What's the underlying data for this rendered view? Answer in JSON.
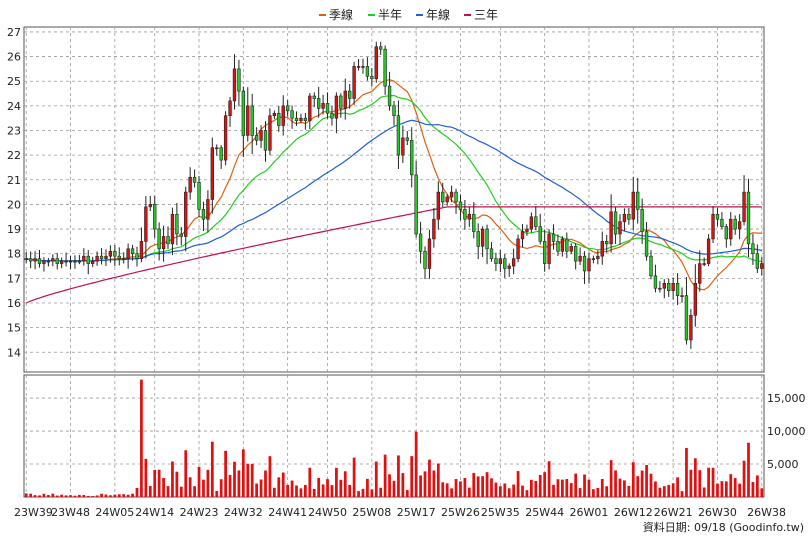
{
  "chart_data": {
    "type": "candlestick",
    "legend": [
      {
        "label": "季線",
        "color": "#e06010"
      },
      {
        "label": "半年",
        "color": "#1ed01e"
      },
      {
        "label": "年線",
        "color": "#1f5fd6"
      },
      {
        "label": "三年",
        "color": "#c0104a"
      }
    ],
    "x_ticks": [
      "23W39",
      "23W48",
      "24W05",
      "24W14",
      "24W23",
      "24W32",
      "24W41",
      "24W50",
      "25W08",
      "25W17",
      "25W26",
      "25W35",
      "25W44",
      "26W01",
      "26W12",
      "26W21",
      "26W30",
      "26W38"
    ],
    "price_ylim": [
      13.2,
      27.2
    ],
    "price_ticks": [
      "27",
      "26",
      "25",
      "24",
      "23",
      "22",
      "21",
      "20",
      "19",
      "18",
      "17",
      "16",
      "15",
      "14"
    ],
    "volume_ylim": [
      0,
      18500
    ],
    "volume_ticks": [
      "15,000",
      "10,000",
      "5,000"
    ],
    "up_color": "#e01010",
    "down_color": "#22cc22",
    "footer": "資料日期: 09/18  (Goodinfo.tw)",
    "close": [
      17.8,
      17.7,
      17.8,
      17.6,
      17.7,
      17.7,
      17.8,
      17.6,
      17.7,
      17.7,
      17.7,
      17.7,
      17.7,
      17.9,
      17.6,
      17.7,
      17.9,
      17.8,
      17.9,
      18.1,
      17.9,
      17.8,
      17.8,
      18.2,
      18.0,
      17.8,
      18.5,
      19.9,
      20.0,
      19.0,
      18.2,
      18.7,
      18.4,
      19.6,
      18.8,
      18.7,
      20.5,
      21.1,
      20.9,
      19.8,
      19.4,
      20.2,
      22.3,
      22.3,
      21.8,
      23.6,
      24.2,
      25.5,
      24.6,
      22.8,
      24.0,
      22.8,
      22.6,
      23.0,
      22.2,
      23.6,
      23.7,
      23.2,
      24.0,
      23.8,
      23.5,
      23.4,
      23.5,
      23.4,
      24.4,
      24.3,
      23.9,
      24.1,
      23.7,
      23.5,
      24.4,
      23.9,
      24.6,
      24.3,
      25.6,
      25.6,
      25.6,
      25.2,
      25.1,
      26.4,
      26.3,
      24.8,
      24.0,
      23.6,
      22.0,
      22.7,
      22.6,
      21.2,
      18.8,
      18.1,
      17.4,
      18.6,
      19.4,
      20.5,
      20.1,
      20.3,
      20.5,
      20.1,
      19.8,
      19.4,
      19.6,
      18.9,
      18.3,
      19.0,
      18.2,
      17.8,
      17.6,
      17.8,
      17.4,
      17.5,
      17.8,
      18.6,
      18.9,
      19.0,
      19.5,
      19.1,
      18.5,
      17.6,
      18.8,
      18.5,
      18.1,
      18.6,
      18.1,
      18.3,
      17.7,
      17.9,
      17.3,
      17.8,
      17.8,
      17.9,
      18.5,
      18.4,
      19.7,
      18.8,
      19.3,
      19.6,
      19.4,
      20.5,
      19.8,
      18.9,
      17.9,
      17.1,
      16.6,
      16.6,
      16.8,
      16.5,
      16.8,
      16.3,
      16.3,
      14.5,
      15.5,
      16.8,
      17.6,
      17.6,
      18.6,
      19.6,
      19.4,
      19.1,
      18.6,
      19.4,
      19.0,
      19.3,
      20.5,
      18.4,
      18.0,
      17.4,
      17.6
    ]
  }
}
